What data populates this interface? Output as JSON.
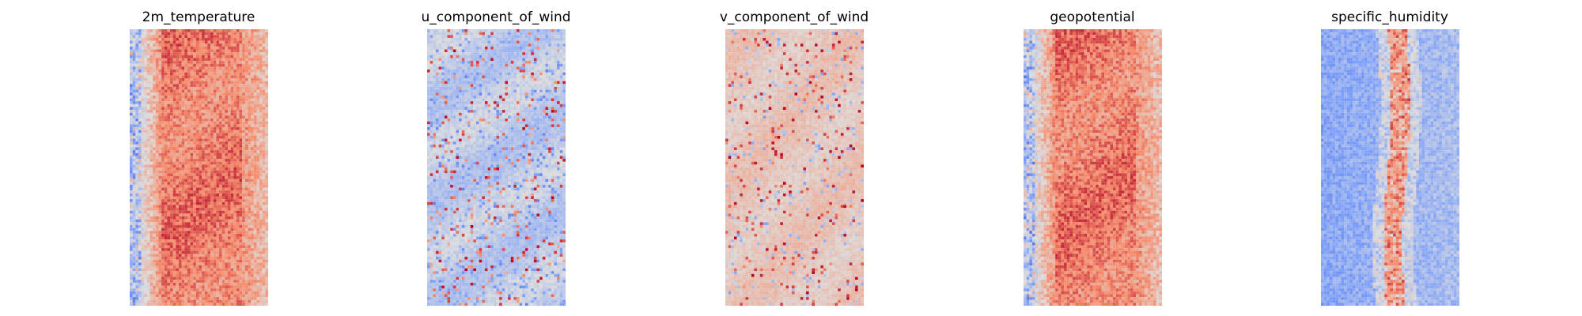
{
  "chart_data": [
    {
      "type": "heatmap",
      "title": "2m_temperature",
      "colormap": "coolwarm",
      "grid": false,
      "axes_visible": false,
      "pattern": "warm-broad-band-cool-left-edge"
    },
    {
      "type": "heatmap",
      "title": "u_component_of_wind",
      "colormap": "coolwarm",
      "grid": false,
      "axes_visible": false,
      "pattern": "near-zero-with-mixed-cool-warm-streaks"
    },
    {
      "type": "heatmap",
      "title": "v_component_of_wind",
      "colormap": "coolwarm",
      "grid": false,
      "axes_visible": false,
      "pattern": "slightly-warm-with-scattered-extremes"
    },
    {
      "type": "heatmap",
      "title": "geopotential",
      "colormap": "coolwarm",
      "grid": false,
      "axes_visible": false,
      "pattern": "warm-broad-band-cool-left-edge"
    },
    {
      "type": "heatmap",
      "title": "specific_humidity",
      "colormap": "coolwarm",
      "grid": false,
      "axes_visible": false,
      "pattern": "cool-field-with-warm-center-stripe"
    }
  ],
  "colors": {
    "background": "#ffffff",
    "colormap_low": "#3b4cc0",
    "colormap_mid": "#dddddd",
    "colormap_high": "#b40426"
  }
}
